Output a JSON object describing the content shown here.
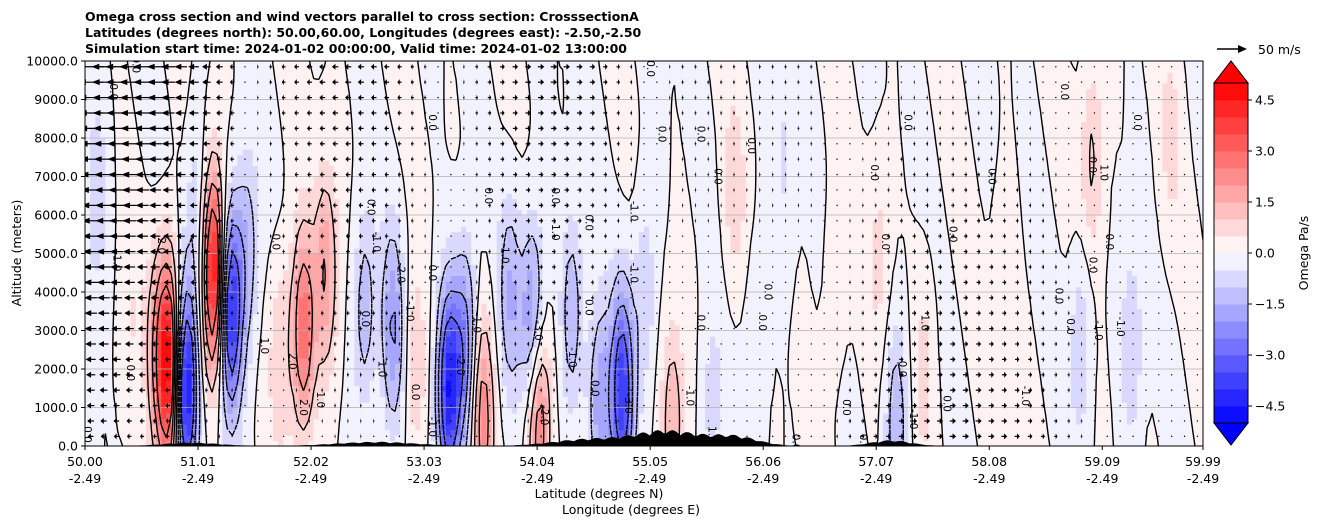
{
  "chart_data": {
    "type": "contourf",
    "title_lines": [
      "Omega cross section and wind vectors parallel to cross section: CrosssectionA",
      "Latitudes (degrees north): 50.00,60.00, Longitudes (degrees east): -2.50,-2.50",
      "Simulation start time: 2024-01-02 00:00:00, Valid time: 2024-01-02 13:00:00"
    ],
    "ylabel": "Altitude (meters)",
    "xlabel_lines": [
      "Latitude (degrees N)",
      "Longitude (degrees E)"
    ],
    "ylim": [
      0,
      10000
    ],
    "xlim": [
      50.0,
      59.99
    ],
    "y_ticks": [
      {
        "value": 0,
        "label": "0.0"
      },
      {
        "value": 1000,
        "label": "1000.0"
      },
      {
        "value": 2000,
        "label": "2000.0"
      },
      {
        "value": 3000,
        "label": "3000.0"
      },
      {
        "value": 4000,
        "label": "4000.0"
      },
      {
        "value": 5000,
        "label": "5000.0"
      },
      {
        "value": 6000,
        "label": "6000.0"
      },
      {
        "value": 7000,
        "label": "7000.0"
      },
      {
        "value": 8000,
        "label": "8000.0"
      },
      {
        "value": 9000,
        "label": "9000.0"
      },
      {
        "value": 10000,
        "label": "10000.0"
      }
    ],
    "x_ticks": [
      {
        "value": 50.0,
        "lat": "50.00",
        "lon": "-2.49"
      },
      {
        "value": 51.01,
        "lat": "51.01",
        "lon": "-2.49"
      },
      {
        "value": 52.02,
        "lat": "52.02",
        "lon": "-2.49"
      },
      {
        "value": 53.03,
        "lat": "53.03",
        "lon": "-2.49"
      },
      {
        "value": 54.04,
        "lat": "54.04",
        "lon": "-2.49"
      },
      {
        "value": 55.05,
        "lat": "55.05",
        "lon": "-2.49"
      },
      {
        "value": 56.06,
        "lat": "56.06",
        "lon": "-2.49"
      },
      {
        "value": 57.07,
        "lat": "57.07",
        "lon": "-2.49"
      },
      {
        "value": 58.08,
        "lat": "58.08",
        "lon": "-2.49"
      },
      {
        "value": 59.09,
        "lat": "59.09",
        "lon": "-2.49"
      },
      {
        "value": 59.99,
        "lat": "59.99",
        "lon": "-2.49"
      }
    ],
    "colorbar": {
      "label": "Omega Pa/s",
      "vmin": -5.0,
      "vmax": 5.0,
      "levels": 20,
      "extend": "both",
      "ticks": [
        {
          "value": 4.5,
          "label": "4.5"
        },
        {
          "value": 3.0,
          "label": "3.0"
        },
        {
          "value": 1.5,
          "label": "1.5"
        },
        {
          "value": 0.0,
          "label": "0.0"
        },
        {
          "value": -1.5,
          "label": "−1.5"
        },
        {
          "value": -3.0,
          "label": "−3.0"
        },
        {
          "value": -4.5,
          "label": "−4.5"
        }
      ]
    },
    "quiver_key": {
      "label": "50 m/s",
      "speed": 50
    },
    "omega_features": [
      {
        "lat": 50.1,
        "alt": 6500,
        "omega": -1.0
      },
      {
        "lat": 50.4,
        "alt": 3000,
        "omega": 0.5
      },
      {
        "lat": 50.65,
        "alt": 2500,
        "omega": 1.5
      },
      {
        "lat": 50.75,
        "alt": 2200,
        "omega": 5.0
      },
      {
        "lat": 50.9,
        "alt": 1500,
        "omega": -5.0
      },
      {
        "lat": 51.0,
        "alt": 6000,
        "omega": -1.0
      },
      {
        "lat": 51.15,
        "alt": 4500,
        "omega": 5.0
      },
      {
        "lat": 51.3,
        "alt": 3500,
        "omega": -4.5
      },
      {
        "lat": 51.45,
        "alt": 5000,
        "omega": -1.5
      },
      {
        "lat": 51.75,
        "alt": 2500,
        "omega": 1.0
      },
      {
        "lat": 51.95,
        "alt": 3000,
        "omega": 3.0
      },
      {
        "lat": 52.15,
        "alt": 4500,
        "omega": 2.0
      },
      {
        "lat": 52.5,
        "alt": 3500,
        "omega": -1.5
      },
      {
        "lat": 52.75,
        "alt": 3000,
        "omega": -2.0
      },
      {
        "lat": 52.95,
        "alt": 2000,
        "omega": 1.0
      },
      {
        "lat": 53.25,
        "alt": 1500,
        "omega": -4.5
      },
      {
        "lat": 53.4,
        "alt": 2500,
        "omega": -2.5
      },
      {
        "lat": 53.55,
        "alt": 700,
        "omega": 2.5
      },
      {
        "lat": 53.8,
        "alt": 4000,
        "omega": -1.5
      },
      {
        "lat": 54.0,
        "alt": 3200,
        "omega": -2.5
      },
      {
        "lat": 54.05,
        "alt": 700,
        "omega": 3.0
      },
      {
        "lat": 54.35,
        "alt": 3500,
        "omega": -1.5
      },
      {
        "lat": 54.6,
        "alt": 1000,
        "omega": -2.0
      },
      {
        "lat": 54.8,
        "alt": 1400,
        "omega": -4.0
      },
      {
        "lat": 55.0,
        "alt": 4000,
        "omega": -1.0
      },
      {
        "lat": 55.25,
        "alt": 600,
        "omega": 1.5
      },
      {
        "lat": 55.6,
        "alt": 1000,
        "omega": -0.8
      },
      {
        "lat": 55.8,
        "alt": 6500,
        "omega": 0.8
      },
      {
        "lat": 56.0,
        "alt": 3000,
        "omega": -0.6
      },
      {
        "lat": 56.25,
        "alt": 7500,
        "omega": -0.6
      },
      {
        "lat": 56.7,
        "alt": 4000,
        "omega": 0.5
      },
      {
        "lat": 57.1,
        "alt": 5000,
        "omega": 0.7
      },
      {
        "lat": 57.25,
        "alt": 600,
        "omega": -1.5
      },
      {
        "lat": 57.5,
        "alt": 2000,
        "omega": 0.7
      },
      {
        "lat": 58.2,
        "alt": 4500,
        "omega": 0.3
      },
      {
        "lat": 58.9,
        "alt": 2800,
        "omega": -1.0
      },
      {
        "lat": 59.0,
        "alt": 7500,
        "omega": 1.2
      },
      {
        "lat": 59.35,
        "alt": 2500,
        "omega": -1.0
      },
      {
        "lat": 59.7,
        "alt": 8000,
        "omega": 0.6
      }
    ],
    "contour_labels": [
      {
        "lat": 50.02,
        "alt": 300,
        "text": "0.0"
      },
      {
        "lat": 50.25,
        "alt": 9200,
        "text": "0.0"
      },
      {
        "lat": 50.28,
        "alt": 4800,
        "text": "-1.0"
      },
      {
        "lat": 50.4,
        "alt": 1900,
        "text": "0.0"
      },
      {
        "lat": 50.45,
        "alt": 9900,
        "text": "0.0"
      },
      {
        "lat": 50.68,
        "alt": 5200,
        "text": "2.0"
      },
      {
        "lat": 50.85,
        "alt": 2800,
        "text": "1.0"
      },
      {
        "lat": 51.7,
        "alt": 5300,
        "text": "0.0"
      },
      {
        "lat": 51.6,
        "alt": 2600,
        "text": "1.0"
      },
      {
        "lat": 51.85,
        "alt": 2200,
        "text": "2.0"
      },
      {
        "lat": 51.95,
        "alt": 1000,
        "text": "2.0"
      },
      {
        "lat": 52.1,
        "alt": 1200,
        "text": "1.0"
      },
      {
        "lat": 52.5,
        "alt": 3300,
        "text": "0.0"
      },
      {
        "lat": 52.55,
        "alt": 6200,
        "text": "0.0"
      },
      {
        "lat": 52.6,
        "alt": 5300,
        "text": "-1.0"
      },
      {
        "lat": 52.65,
        "alt": 2000,
        "text": "1.0"
      },
      {
        "lat": 52.82,
        "alt": 4500,
        "text": "-2.0"
      },
      {
        "lat": 52.9,
        "alt": 3500,
        "text": "-1.0"
      },
      {
        "lat": 52.95,
        "alt": 1400,
        "text": "0.0"
      },
      {
        "lat": 53.1,
        "alt": 8400,
        "text": "0.0"
      },
      {
        "lat": 53.1,
        "alt": 500,
        "text": "-1.0"
      },
      {
        "lat": 53.35,
        "alt": 2100,
        "text": "-2.0"
      },
      {
        "lat": 53.1,
        "alt": 4500,
        "text": "0.0"
      },
      {
        "lat": 53.5,
        "alt": 3200,
        "text": "-1.0"
      },
      {
        "lat": 53.6,
        "alt": 6500,
        "text": "0.0"
      },
      {
        "lat": 53.75,
        "alt": 5000,
        "text": "-1.0"
      },
      {
        "lat": 54.2,
        "alt": 6500,
        "text": "0.0"
      },
      {
        "lat": 54.2,
        "alt": 5600,
        "text": "-1.0"
      },
      {
        "lat": 54.05,
        "alt": 3000,
        "text": "-3.0"
      },
      {
        "lat": 54.1,
        "alt": 800,
        "text": "-2.0"
      },
      {
        "lat": 54.35,
        "alt": 2300,
        "text": "-1.0"
      },
      {
        "lat": 54.55,
        "alt": 1500,
        "text": "0.0"
      },
      {
        "lat": 54.5,
        "alt": 5800,
        "text": "0.0"
      },
      {
        "lat": 54.5,
        "alt": 3600,
        "text": "0.0"
      },
      {
        "lat": 54.85,
        "alt": 1100,
        "text": "-3.0"
      },
      {
        "lat": 54.9,
        "alt": 6100,
        "text": "-1.0"
      },
      {
        "lat": 54.9,
        "alt": 4500,
        "text": "-1.0"
      },
      {
        "lat": 55.05,
        "alt": 9800,
        "text": "0.0"
      },
      {
        "lat": 55.15,
        "alt": 8100,
        "text": "0.0"
      },
      {
        "lat": 55.4,
        "alt": 1300,
        "text": "-1.0"
      },
      {
        "lat": 55.5,
        "alt": 8100,
        "text": "0.0"
      },
      {
        "lat": 55.5,
        "alt": 3200,
        "text": "0.0"
      },
      {
        "lat": 55.65,
        "alt": 7000,
        "text": "0.0"
      },
      {
        "lat": 55.6,
        "alt": 300,
        "text": "1.0"
      },
      {
        "lat": 55.95,
        "alt": 7800,
        "text": "0.0"
      },
      {
        "lat": 56.05,
        "alt": 3200,
        "text": "0.0"
      },
      {
        "lat": 56.1,
        "alt": 4000,
        "text": "0.0"
      },
      {
        "lat": 56.35,
        "alt": 100,
        "text": "0.0"
      },
      {
        "lat": 56.8,
        "alt": 1000,
        "text": "0.0"
      },
      {
        "lat": 56.95,
        "alt": 100,
        "text": "0.0"
      },
      {
        "lat": 57.05,
        "alt": 7100,
        "text": "0.0"
      },
      {
        "lat": 57.15,
        "alt": 5300,
        "text": "0.0"
      },
      {
        "lat": 57.3,
        "alt": 2000,
        "text": "0.0"
      },
      {
        "lat": 57.35,
        "alt": 8400,
        "text": "0.0"
      },
      {
        "lat": 57.4,
        "alt": 700,
        "text": "-1.0"
      },
      {
        "lat": 57.5,
        "alt": 3200,
        "text": "1.0"
      },
      {
        "lat": 57.7,
        "alt": 1100,
        "text": "0.0"
      },
      {
        "lat": 57.75,
        "alt": 5500,
        "text": "0.0"
      },
      {
        "lat": 58.1,
        "alt": 7000,
        "text": "0.0"
      },
      {
        "lat": 58.4,
        "alt": 1300,
        "text": "-1.0"
      },
      {
        "lat": 58.7,
        "alt": 3900,
        "text": "0.0"
      },
      {
        "lat": 58.75,
        "alt": 9200,
        "text": "0.0"
      },
      {
        "lat": 58.8,
        "alt": 3100,
        "text": "0.0"
      },
      {
        "lat": 59.0,
        "alt": 4700,
        "text": "0.0"
      },
      {
        "lat": 59.0,
        "alt": 7300,
        "text": "0.0"
      },
      {
        "lat": 59.1,
        "alt": 7100,
        "text": "1.0"
      },
      {
        "lat": 59.05,
        "alt": 3000,
        "text": "-1.0"
      },
      {
        "lat": 59.15,
        "alt": 5300,
        "text": "0.0"
      },
      {
        "lat": 59.25,
        "alt": 3100,
        "text": "-1.0"
      },
      {
        "lat": 59.4,
        "alt": 8400,
        "text": "0.0"
      }
    ]
  }
}
